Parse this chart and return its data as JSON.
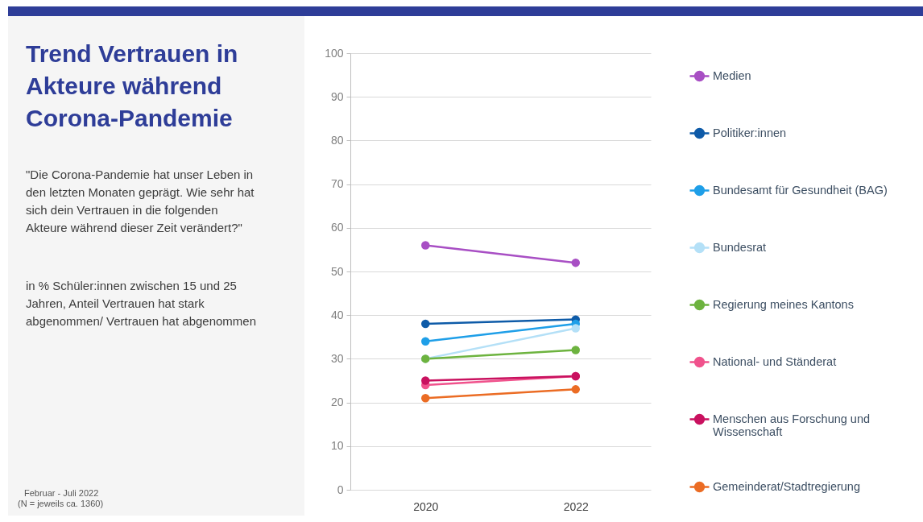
{
  "chart_data": {
    "type": "line",
    "title": "Trend Vertrauen in Akteure während Corona-Pandemie",
    "subtitle": "\"Die Corona-Pandemie hat unser Leben in den letzten Monaten geprägt. Wie sehr hat sich dein Vertrauen in die folgenden Akteure während dieser Zeit verändert?\"",
    "annotations": [
      "in % Schüler:innen zwischen 15 und 25 Jahren, Anteil Vertrauen hat stark abgenommen/ Vertrauen hat abgenommen",
      "Februar - Juli 2022",
      "(N = jeweils ca. 1360)"
    ],
    "categories": [
      "2020",
      "2022"
    ],
    "series": [
      {
        "name": "Medien",
        "color": "#a84fc4",
        "values": [
          56,
          52
        ]
      },
      {
        "name": "Politiker:innen",
        "color": "#0e5ba8",
        "values": [
          38,
          39
        ]
      },
      {
        "name": "Bundesamt für Gesundheit (BAG)",
        "color": "#1f9fe8",
        "values": [
          34,
          38
        ]
      },
      {
        "name": "Bundesrat",
        "color": "#b4e0f7",
        "values": [
          30,
          37
        ]
      },
      {
        "name": "Regierung meines Kantons",
        "color": "#6db33f",
        "values": [
          30,
          32
        ]
      },
      {
        "name": "National- und Ständerat",
        "color": "#f0528c",
        "values": [
          24,
          26
        ]
      },
      {
        "name": "Menschen aus Forschung und Wissenschaft",
        "color": "#c9115f",
        "values": [
          25,
          26
        ]
      },
      {
        "name": "Gemeinderat/Stadtregierung",
        "color": "#eb6c24",
        "values": [
          21,
          23
        ]
      }
    ],
    "ylim": [
      0,
      100
    ],
    "yticks": [
      0,
      10,
      20,
      30,
      40,
      50,
      60,
      70,
      80,
      90,
      100
    ],
    "grid": "y",
    "legend": "right",
    "marker": "circle",
    "line_style": "solid"
  }
}
